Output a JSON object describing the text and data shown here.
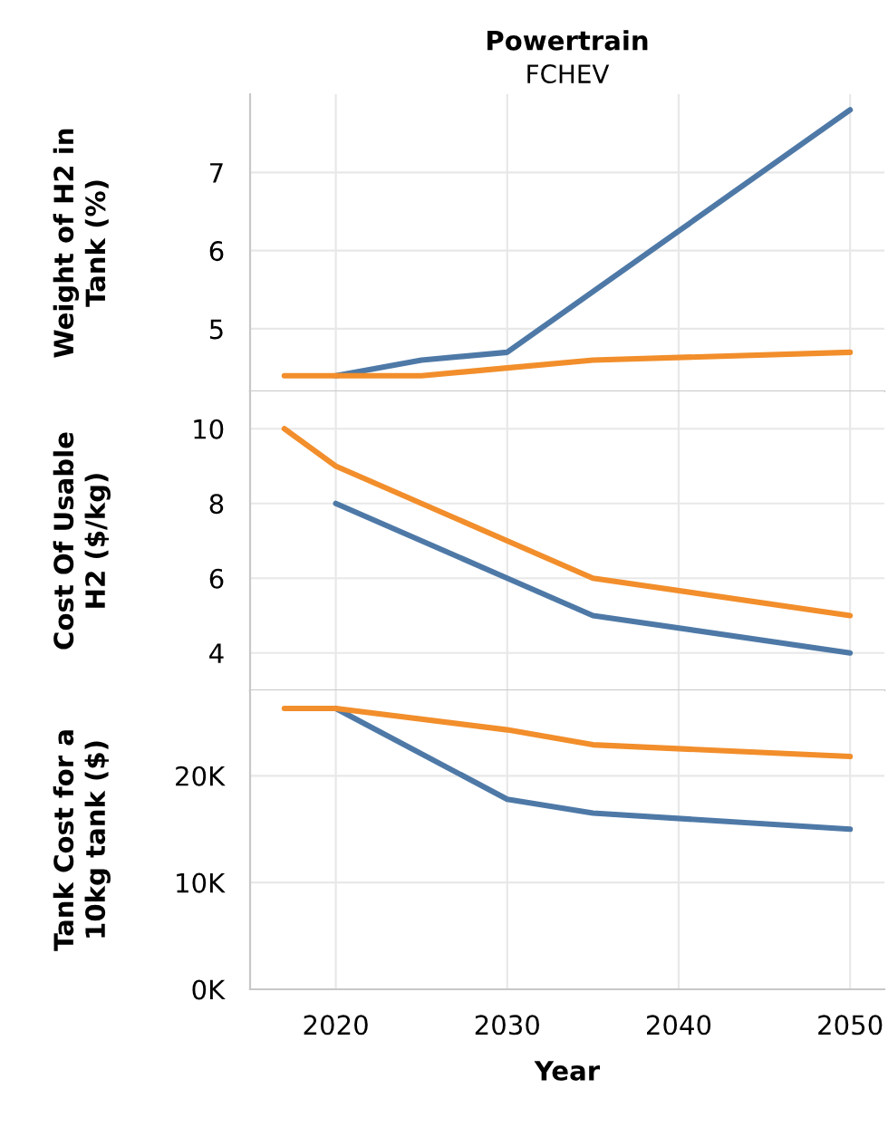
{
  "chart_data": [
    {
      "type": "line",
      "title": "Powertrain",
      "subtitle": "FCHEV",
      "ylabel": "Weight of H2 in\nTank (%)",
      "xlim": [
        2015,
        2052
      ],
      "xticks": [
        2020,
        2030,
        2040,
        2050
      ],
      "ylim": [
        4.2,
        8.0
      ],
      "yticks": [
        5,
        6,
        7
      ],
      "grid": true,
      "tick_labels": "y",
      "series": [
        {
          "color": "#4e79a7",
          "x": [
            2020,
            2025,
            2030,
            2050
          ],
          "values": [
            4.4,
            4.6,
            4.7,
            7.8
          ]
        },
        {
          "color": "#f28e2b",
          "x": [
            2017,
            2020,
            2025,
            2030,
            2035,
            2050
          ],
          "values": [
            4.4,
            4.4,
            4.4,
            4.5,
            4.6,
            4.7
          ]
        }
      ]
    },
    {
      "type": "line",
      "ylabel": "Cost Of Usable\nH2 ($/kg)",
      "xlim": [
        2015,
        2052
      ],
      "xticks": [
        2020,
        2030,
        2040,
        2050
      ],
      "ylim": [
        3,
        11
      ],
      "yticks": [
        4,
        6,
        8,
        10
      ],
      "grid": true,
      "tick_labels": "y",
      "series": [
        {
          "color": "#4e79a7",
          "x": [
            2020,
            2030,
            2035,
            2050
          ],
          "values": [
            8,
            6,
            5,
            4
          ]
        },
        {
          "color": "#f28e2b",
          "x": [
            2017,
            2020,
            2030,
            2035,
            2050
          ],
          "values": [
            10,
            9,
            7,
            6,
            5
          ]
        }
      ]
    },
    {
      "type": "line",
      "xlabel": "Year",
      "ylabel": "Tank Cost for a\n10kg tank ($)",
      "xlim": [
        2015,
        2052
      ],
      "xticks": [
        2020,
        2030,
        2040,
        2050
      ],
      "ylim": [
        0,
        28000
      ],
      "yticks": [
        {
          "value": 0,
          "label": "0K"
        },
        {
          "value": 10000,
          "label": "10K"
        },
        {
          "value": 20000,
          "label": "20K"
        }
      ],
      "grid": true,
      "series": [
        {
          "color": "#4e79a7",
          "x": [
            2020,
            2030,
            2035,
            2050
          ],
          "values": [
            26300,
            17800,
            16500,
            15000
          ]
        },
        {
          "color": "#f28e2b",
          "x": [
            2017,
            2020,
            2030,
            2035,
            2050
          ],
          "values": [
            26300,
            26300,
            24300,
            22900,
            21800
          ]
        }
      ]
    }
  ]
}
